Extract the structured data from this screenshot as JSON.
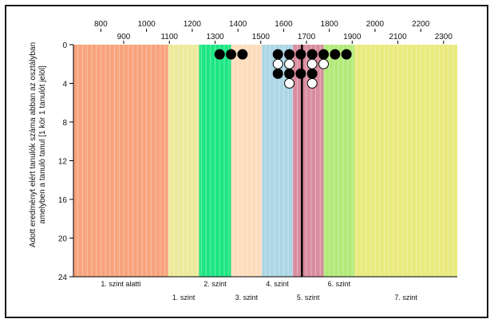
{
  "chart_data": {
    "type": "scatter",
    "title": "",
    "ylabel_lines": [
      "Adott eredményt elért tanulók száma abban az osztályban",
      "amelyben a tanuló tanul [1 kör 1 tanulót jelöl]"
    ],
    "xlim": [
      680,
      2360
    ],
    "ylim": [
      0,
      24
    ],
    "y_inverted": true,
    "x_ticks_major": [
      800,
      1000,
      1200,
      1400,
      1600,
      1800,
      2000,
      2200
    ],
    "x_ticks_minor": [
      900,
      1100,
      1300,
      1500,
      1700,
      1900,
      2100,
      2300
    ],
    "y_ticks": [
      0,
      4,
      8,
      12,
      16,
      20,
      24
    ],
    "grid_x_step": 20,
    "bands": [
      {
        "from": 680,
        "to": 1095,
        "label": "1. szint alatti",
        "label_row": 1,
        "color": "#f8a37c"
      },
      {
        "from": 1095,
        "to": 1230,
        "label": "1. szint",
        "label_row": 2,
        "color": "#ecea9a"
      },
      {
        "from": 1230,
        "to": 1370,
        "label": "2. szint",
        "label_row": 1,
        "color": "#1de683"
      },
      {
        "from": 1370,
        "to": 1505,
        "label": "3. szint",
        "label_row": 2,
        "color": "#fddcbc"
      },
      {
        "from": 1505,
        "to": 1640,
        "label": "4. szint",
        "label_row": 1,
        "color": "#acd6e6"
      },
      {
        "from": 1640,
        "to": 1775,
        "label": "5. szint",
        "label_row": 2,
        "color": "#d98d9e"
      },
      {
        "from": 1775,
        "to": 1910,
        "label": "6. szint",
        "label_row": 1,
        "color": "#b2ea79"
      },
      {
        "from": 1910,
        "to": 2360,
        "label": "7. szint",
        "label_row": 2,
        "color": "#e9ea7d"
      }
    ],
    "reference_line_x": 1680,
    "series": [
      {
        "style": "filled",
        "points": [
          {
            "x": 1320,
            "y": 1
          },
          {
            "x": 1370,
            "y": 1
          },
          {
            "x": 1420,
            "y": 1
          },
          {
            "x": 1575,
            "y": 1
          },
          {
            "x": 1625,
            "y": 1
          },
          {
            "x": 1675,
            "y": 1
          },
          {
            "x": 1725,
            "y": 1
          },
          {
            "x": 1775,
            "y": 1
          },
          {
            "x": 1825,
            "y": 1
          },
          {
            "x": 1875,
            "y": 1
          },
          {
            "x": 1575,
            "y": 3
          },
          {
            "x": 1625,
            "y": 3
          },
          {
            "x": 1675,
            "y": 3
          },
          {
            "x": 1725,
            "y": 3
          }
        ]
      },
      {
        "style": "open",
        "points": [
          {
            "x": 1575,
            "y": 2
          },
          {
            "x": 1625,
            "y": 2
          },
          {
            "x": 1725,
            "y": 2
          },
          {
            "x": 1775,
            "y": 2
          },
          {
            "x": 1625,
            "y": 4
          },
          {
            "x": 1725,
            "y": 4
          }
        ]
      }
    ]
  }
}
